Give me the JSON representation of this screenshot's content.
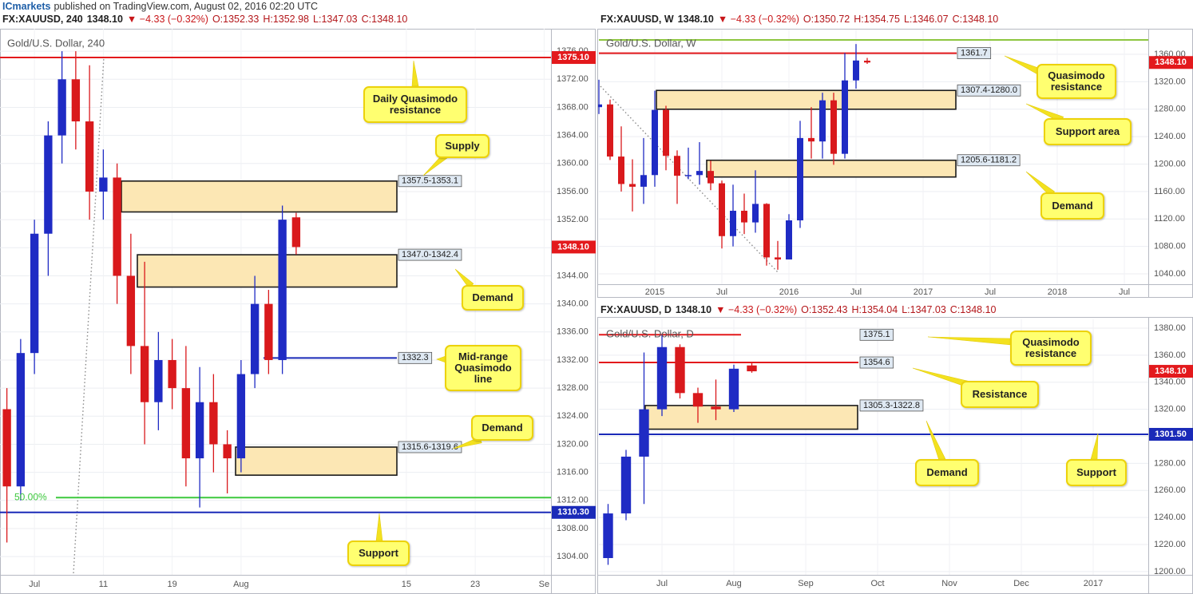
{
  "header": {
    "brand": "ICmarkets",
    "published": "published on TradingView.com, August 02, 2016 02:20 UTC"
  },
  "chart_data": [
    {
      "type": "candlestick",
      "title": "Gold/U.S. Dollar, 240",
      "quote": {
        "symbol": "FX:XAUUSD, 240",
        "last": "1348.10",
        "change": "▼ −4.33 (−0.32%)",
        "open": "O:1352.33",
        "high": "H:1352.98",
        "low": "L:1347.03",
        "close": "C:1348.10"
      },
      "categories": [
        null,
        null,
        "Jul",
        null,
        null,
        null,
        null,
        "11",
        null,
        null,
        null,
        null,
        "19",
        null,
        null,
        null,
        null,
        "Aug",
        null,
        null,
        null,
        null,
        null,
        null,
        null,
        null,
        null,
        null,
        null,
        "15",
        null,
        null,
        null,
        null,
        "23",
        null,
        null,
        null,
        null,
        "Se"
      ],
      "open": [
        1325,
        1314,
        1333,
        1350,
        1364,
        1372,
        1366,
        1356,
        1358,
        1344,
        1334,
        1326,
        1332,
        1328,
        1318,
        1326,
        1320,
        1318,
        1330,
        1340,
        1332,
        1352.33,
        null,
        null,
        null,
        null,
        null,
        null,
        null,
        null,
        null,
        null,
        null,
        null,
        null,
        null,
        null,
        null,
        null,
        null
      ],
      "high": [
        1328,
        1335,
        1352,
        1366,
        1376,
        1376,
        1374,
        1362,
        1360,
        1350,
        1346,
        1336,
        1335,
        1334,
        1331,
        1330,
        1322,
        1332,
        1344,
        1342,
        1354,
        1352.98,
        null,
        null,
        null,
        null,
        null,
        null,
        null,
        null,
        null,
        null,
        null,
        null,
        null,
        null,
        null,
        null,
        null,
        null
      ],
      "low": [
        1306,
        1312,
        1330,
        1344,
        1360,
        1362,
        1352,
        1352,
        1340,
        1330,
        1320,
        1322,
        1325,
        1314,
        1311,
        1316,
        1313,
        1316,
        1328,
        1330,
        1330,
        1347.03,
        null,
        null,
        null,
        null,
        null,
        null,
        null,
        null,
        null,
        null,
        null,
        null,
        null,
        null,
        null,
        null,
        null,
        null
      ],
      "close": [
        1314,
        1333,
        1350,
        1364,
        1372,
        1366,
        1356,
        1358,
        1344,
        1334,
        1326,
        1332,
        1328,
        1318,
        1326,
        1320,
        1318,
        1330,
        1340,
        1332,
        1352,
        1348.1,
        null,
        null,
        null,
        null,
        null,
        null,
        null,
        null,
        null,
        null,
        null,
        null,
        null,
        null,
        null,
        null,
        null,
        null
      ],
      "up_color": "#1f2bc4",
      "down_color": "#d9191c",
      "ylim": [
        1301.4,
        1379.2
      ],
      "yticks": [
        {
          "value": 1304,
          "label": "1304.00"
        },
        {
          "value": 1308,
          "label": "1308.00"
        },
        {
          "value": 1312,
          "label": "1312.00"
        },
        {
          "value": 1316,
          "label": "1316.00"
        },
        {
          "value": 1320,
          "label": "1320.00"
        },
        {
          "value": 1324,
          "label": "1324.00"
        },
        {
          "value": 1328,
          "label": "1328.00"
        },
        {
          "value": 1332,
          "label": "1332.00"
        },
        {
          "value": 1336,
          "label": "1336.00"
        },
        {
          "value": 1340,
          "label": "1340.00"
        },
        {
          "value": 1344,
          "label": "1344.00"
        },
        {
          "value": 1348,
          "label": "1348.00"
        },
        {
          "value": 1352,
          "label": "1352.00"
        },
        {
          "value": 1356,
          "label": "1356.00"
        },
        {
          "value": 1360,
          "label": "1360.00"
        },
        {
          "value": 1364,
          "label": "1364.00"
        },
        {
          "value": 1368,
          "label": "1368.00"
        },
        {
          "value": 1372,
          "label": "1372.00"
        },
        {
          "value": 1376,
          "label": "1376.00"
        }
      ],
      "grid": true,
      "zone_color": "#fce7b4",
      "zones": [
        {
          "top": 1357.5,
          "bottom": 1353.1,
          "label": "1357.5-1353.1"
        },
        {
          "top": 1347.0,
          "bottom": 1342.4,
          "label": "1347.0-1342.4"
        },
        {
          "top": 1319.6,
          "bottom": 1315.6,
          "label": "1315.6-1319.6"
        }
      ],
      "hlines": [
        {
          "value": 1375.1,
          "label": "1375.10",
          "color": "#e3191c",
          "tag": "axis"
        },
        {
          "value": 1310.3,
          "label": "1310.30",
          "color": "#1a2ab8",
          "tag": "axis"
        },
        {
          "value": 1332.3,
          "color": "#1a2ab8",
          "tag": "box"
        },
        {
          "value": 1312.4,
          "label": "50.00%",
          "color": "#3dc83d",
          "tag": "inline"
        }
      ],
      "price_tag": {
        "value": 1348.1,
        "label": "1348.10",
        "color": "#e3191c"
      },
      "annotations": [
        "Daily Quasimodo resistance",
        "Supply",
        "Demand",
        "Mid-range Quasimodo line",
        "Demand",
        "Support"
      ]
    },
    {
      "type": "candlestick",
      "title": "Gold/U.S. Dollar, W",
      "quote": {
        "symbol": "FX:XAUUSD, W",
        "last": "1348.10",
        "change": "▼ −4.33 (−0.32%)",
        "open": "O:1350.72",
        "high": "H:1354.75",
        "low": "L:1346.07",
        "close": "C:1348.10"
      },
      "categories": [
        null,
        null,
        null,
        null,
        null,
        "2015",
        null,
        null,
        null,
        null,
        null,
        "Jul",
        null,
        null,
        null,
        null,
        null,
        "2016",
        null,
        null,
        null,
        null,
        null,
        "Jul",
        null,
        null,
        null,
        null,
        null,
        "2017",
        null,
        null,
        null,
        null,
        null,
        "Jul",
        null,
        null,
        null,
        null,
        null,
        "2018",
        null,
        null,
        null,
        null,
        null,
        "Jul",
        null
      ],
      "open": [
        1283,
        1287,
        1211,
        1171,
        1167,
        1184,
        1279,
        1212,
        1183,
        1184,
        1190,
        1172,
        1095,
        1132,
        1115,
        1142,
        1064,
        1061,
        1118,
        1238,
        1233,
        1293,
        1215,
        1322,
        1350.72,
        null,
        null,
        null,
        null,
        null,
        null,
        null,
        null,
        null,
        null,
        null,
        null,
        null,
        null,
        null,
        null,
        null,
        null,
        null,
        null,
        null,
        null,
        null,
        null
      ],
      "high": [
        1323,
        1294,
        1255,
        1207,
        1238,
        1307,
        1285,
        1220,
        1224,
        1232,
        1205,
        1176,
        1170,
        1157,
        1191,
        1143,
        1088,
        1127,
        1263,
        1283,
        1304,
        1304,
        1362,
        1375,
        1354.75,
        null,
        null,
        null,
        null,
        null,
        null,
        null,
        null,
        null,
        null,
        null,
        null,
        null,
        null,
        null,
        null,
        null,
        null,
        null,
        null,
        null,
        null,
        null,
        null
      ],
      "low": [
        1273,
        1206,
        1160,
        1131,
        1142,
        1167,
        1191,
        1142,
        1178,
        1170,
        1162,
        1077,
        1080,
        1098,
        1100,
        1052,
        1046,
        1061,
        1107,
        1208,
        1208,
        1199,
        1208,
        1310,
        1346.07,
        null,
        null,
        null,
        null,
        null,
        null,
        null,
        null,
        null,
        null,
        null,
        null,
        null,
        null,
        null,
        null,
        null,
        null,
        null,
        null,
        null,
        null,
        null,
        null
      ],
      "close": [
        1287,
        1211,
        1171,
        1167,
        1184,
        1279,
        1212,
        1183,
        1184,
        1190,
        1172,
        1095,
        1132,
        1115,
        1142,
        1064,
        1061,
        1118,
        1238,
        1233,
        1293,
        1215,
        1322,
        1351,
        1348.1,
        null,
        null,
        null,
        null,
        null,
        null,
        null,
        null,
        null,
        null,
        null,
        null,
        null,
        null,
        null,
        null,
        null,
        null,
        null,
        null,
        null,
        null,
        null,
        null
      ],
      "up_color": "#1f2bc4",
      "down_color": "#d9191c",
      "ylim": [
        1024.9,
        1397.3
      ],
      "yticks": [
        {
          "value": 1040,
          "label": "1040.00"
        },
        {
          "value": 1080,
          "label": "1080.00"
        },
        {
          "value": 1120,
          "label": "1120.00"
        },
        {
          "value": 1160,
          "label": "1160.00"
        },
        {
          "value": 1200,
          "label": "1200.00"
        },
        {
          "value": 1240,
          "label": "1240.00"
        },
        {
          "value": 1280,
          "label": "1280.00"
        },
        {
          "value": 1320,
          "label": "1320.00"
        },
        {
          "value": 1360,
          "label": "1360.00"
        }
      ],
      "grid": true,
      "zone_color": "#fce7b4",
      "zones": [
        {
          "top": 1307.4,
          "bottom": 1280.0,
          "label": "1307.4-1280.0"
        },
        {
          "top": 1205.6,
          "bottom": 1181.2,
          "label": "1205.6-1181.2"
        }
      ],
      "hlines": [
        {
          "value": 1381,
          "color": "#8dc63f",
          "tag": "none"
        },
        {
          "value": 1361.7,
          "color": "#e3191c",
          "tag": "box"
        }
      ],
      "price_tag": {
        "value": 1348.1,
        "label": "1348.10",
        "color": "#e3191c"
      },
      "annotations": [
        "Quasimodo resistance",
        "Support area",
        "Demand"
      ]
    },
    {
      "type": "candlestick",
      "title": "Gold/U.S. Dollar, D",
      "quote": {
        "symbol": "FX:XAUUSD, D",
        "last": "1348.10",
        "change": "▼ −4.33 (−0.32%)",
        "open": "O:1352.43",
        "high": "H:1354.04",
        "low": "L:1347.03",
        "close": "C:1348.10"
      },
      "categories": [
        null,
        null,
        null,
        "Jul",
        null,
        null,
        null,
        "Aug",
        null,
        null,
        null,
        "Sep",
        null,
        null,
        null,
        "Oct",
        null,
        null,
        null,
        "Nov",
        null,
        null,
        null,
        "Dec",
        null,
        null,
        null,
        "2017",
        null,
        null
      ],
      "open": [
        1210,
        1243,
        1285,
        1320,
        1366,
        1332,
        1322,
        1320,
        1352.43,
        null,
        null,
        null,
        null,
        null,
        null,
        null,
        null,
        null,
        null,
        null,
        null,
        null,
        null,
        null,
        null,
        null,
        null,
        null,
        null,
        null
      ],
      "high": [
        1250,
        1290,
        1362,
        1375,
        1368,
        1336,
        1342,
        1353,
        1354.04,
        null,
        null,
        null,
        null,
        null,
        null,
        null,
        null,
        null,
        null,
        null,
        null,
        null,
        null,
        null,
        null,
        null,
        null,
        null,
        null,
        null
      ],
      "low": [
        1205,
        1238,
        1250,
        1315,
        1328,
        1310,
        1312,
        1318,
        1347.03,
        null,
        null,
        null,
        null,
        null,
        null,
        null,
        null,
        null,
        null,
        null,
        null,
        null,
        null,
        null,
        null,
        null,
        null,
        null,
        null,
        null
      ],
      "close": [
        1243,
        1285,
        1320,
        1366,
        1332,
        1322,
        1320,
        1350,
        1348.1,
        null,
        null,
        null,
        null,
        null,
        null,
        null,
        null,
        null,
        null,
        null,
        null,
        null,
        null,
        null,
        null,
        null,
        null,
        null,
        null,
        null
      ],
      "up_color": "#1f2bc4",
      "down_color": "#d9191c",
      "ylim": [
        1197.6,
        1386.5
      ],
      "yticks": [
        {
          "value": 1200,
          "label": "1200.00"
        },
        {
          "value": 1220,
          "label": "1220.00"
        },
        {
          "value": 1240,
          "label": "1240.00"
        },
        {
          "value": 1260,
          "label": "1260.00"
        },
        {
          "value": 1280,
          "label": "1280.00"
        },
        {
          "value": 1300,
          "label": "1300.00"
        },
        {
          "value": 1320,
          "label": "1320.00"
        },
        {
          "value": 1340,
          "label": "1340.00"
        },
        {
          "value": 1360,
          "label": "1360.00"
        },
        {
          "value": 1380,
          "label": "1380.00"
        }
      ],
      "grid": true,
      "zone_color": "#fce7b4",
      "zones": [
        {
          "top": 1322.8,
          "bottom": 1305.3,
          "label": "1305.3-1322.8"
        }
      ],
      "hlines": [
        {
          "value": 1375.1,
          "color": "#e3191c",
          "tag": "box"
        },
        {
          "value": 1354.6,
          "color": "#e3191c",
          "tag": "box"
        },
        {
          "value": 1301.5,
          "label": "1301.50",
          "color": "#1a2ab8",
          "tag": "axis"
        }
      ],
      "price_tag": {
        "value": 1348.1,
        "label": "1348.10",
        "color": "#e3191c"
      },
      "annotations": [
        "Quasimodo resistance",
        "Resistance",
        "Demand",
        "Support"
      ]
    }
  ]
}
